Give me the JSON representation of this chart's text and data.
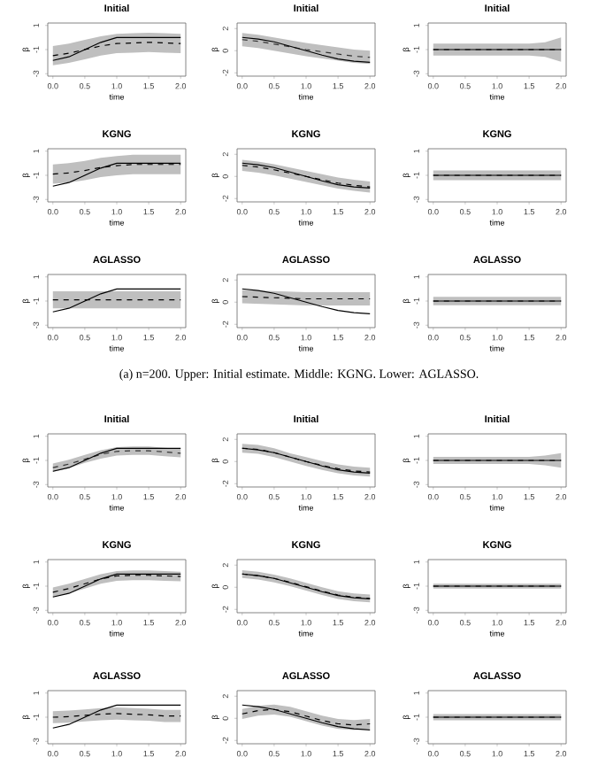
{
  "chart_data": [
    {
      "type": "line",
      "title": "Initial",
      "xlabel": "time",
      "ylabel": "β",
      "x": [
        0,
        0.25,
        0.5,
        0.75,
        1,
        1.25,
        1.5,
        1.75,
        2
      ],
      "xlim": [
        -0.08,
        2.08
      ],
      "ylim": [
        -3.2,
        1.2
      ],
      "xticks": [
        {
          "value": 0,
          "label": "0.0"
        },
        {
          "value": 0.5,
          "label": "0.5"
        },
        {
          "value": 1,
          "label": "1.0"
        },
        {
          "value": 1.5,
          "label": "1.5"
        },
        {
          "value": 2,
          "label": "2.0"
        }
      ],
      "yticks": [
        -3,
        -1,
        1
      ],
      "series": [
        {
          "color": "#000000",
          "line_style": "dashed",
          "values": [
            -1.5,
            -1.3,
            -1.0,
            -0.7,
            -0.5,
            -0.45,
            -0.4,
            -0.45,
            -0.5
          ],
          "lower": [
            -2.3,
            -2.1,
            -1.8,
            -1.5,
            -1.3,
            -1.25,
            -1.2,
            -1.25,
            -1.3
          ],
          "upper": [
            -0.7,
            -0.5,
            -0.2,
            0.1,
            0.3,
            0.35,
            0.4,
            0.35,
            0.3
          ]
        },
        {
          "color": "#000000",
          "line_style": "solid",
          "values": [
            -1.9,
            -1.6,
            -1.0,
            -0.4,
            0,
            0,
            0,
            0,
            0
          ]
        }
      ]
    },
    {
      "type": "line",
      "title": "Initial",
      "xlabel": "time",
      "ylabel": "β",
      "x": [
        0,
        0.25,
        0.5,
        0.75,
        1,
        1.25,
        1.5,
        1.75,
        2
      ],
      "xlim": [
        -0.08,
        2.08
      ],
      "ylim": [
        -2.3,
        2.5
      ],
      "xticks": [
        {
          "value": 0,
          "label": "0.0"
        },
        {
          "value": 0.5,
          "label": "0.5"
        },
        {
          "value": 1,
          "label": "1.0"
        },
        {
          "value": 1.5,
          "label": "1.5"
        },
        {
          "value": 2,
          "label": "2.0"
        }
      ],
      "yticks": [
        -2,
        0,
        2
      ],
      "series": [
        {
          "color": "#333333",
          "line_style": "dashed",
          "values": [
            1.0,
            0.85,
            0.6,
            0.35,
            0.1,
            -0.1,
            -0.3,
            -0.5,
            -0.6
          ],
          "lower": [
            0.4,
            0.25,
            0,
            -0.25,
            -0.5,
            -0.7,
            -0.9,
            -1.1,
            -1.2
          ],
          "upper": [
            1.6,
            1.45,
            1.2,
            0.95,
            0.7,
            0.5,
            0.3,
            0.1,
            0
          ]
        },
        {
          "color": "#000000",
          "line_style": "solid",
          "values": [
            1.2,
            1.05,
            0.8,
            0.4,
            0,
            -0.4,
            -0.75,
            -0.95,
            -1.05
          ]
        }
      ]
    },
    {
      "type": "line",
      "title": "Initial",
      "xlabel": "time",
      "ylabel": "β",
      "x": [
        0,
        0.25,
        0.5,
        0.75,
        1,
        1.25,
        1.5,
        1.75,
        2
      ],
      "xlim": [
        -0.08,
        2.08
      ],
      "ylim": [
        -3.2,
        1.2
      ],
      "xticks": [
        {
          "value": 0,
          "label": "0.0"
        },
        {
          "value": 0.5,
          "label": "0.5"
        },
        {
          "value": 1,
          "label": "1.0"
        },
        {
          "value": 1.5,
          "label": "1.5"
        },
        {
          "value": 2,
          "label": "2.0"
        }
      ],
      "yticks": [
        -3,
        -1,
        1
      ],
      "series": [
        {
          "color": "#000000",
          "line_style": "dashed",
          "values": [
            -1,
            -1,
            -1,
            -1,
            -1,
            -1,
            -1,
            -1,
            -1
          ],
          "lower": [
            -1.5,
            -1.5,
            -1.5,
            -1.5,
            -1.5,
            -1.5,
            -1.5,
            -1.6,
            -2
          ],
          "upper": [
            -0.5,
            -0.5,
            -0.5,
            -0.5,
            -0.5,
            -0.5,
            -0.5,
            -0.4,
            0
          ]
        },
        {
          "color": "#000000",
          "line_style": "solid",
          "values": [
            -1,
            -1,
            -1,
            -1,
            -1,
            -1,
            -1,
            -1,
            -1
          ]
        }
      ]
    },
    {
      "type": "line",
      "title": "KGNG",
      "xlabel": "time",
      "ylabel": "β",
      "x": [
        0,
        0.25,
        0.5,
        0.75,
        1,
        1.25,
        1.5,
        1.75,
        2
      ],
      "xlim": [
        -0.08,
        2.08
      ],
      "ylim": [
        -3.2,
        1.2
      ],
      "xticks": [
        {
          "value": 0,
          "label": "0.0"
        },
        {
          "value": 0.5,
          "label": "0.5"
        },
        {
          "value": 1,
          "label": "1.0"
        },
        {
          "value": 1.5,
          "label": "1.5"
        },
        {
          "value": 2,
          "label": "2.0"
        }
      ],
      "yticks": [
        -3,
        -1,
        1
      ],
      "series": [
        {
          "color": "#000000",
          "line_style": "dashed",
          "values": [
            -0.9,
            -0.8,
            -0.6,
            -0.35,
            -0.2,
            -0.1,
            -0.1,
            -0.1,
            -0.1
          ],
          "lower": [
            -1.7,
            -1.6,
            -1.4,
            -1.15,
            -1.0,
            -0.9,
            -0.9,
            -0.9,
            -0.9
          ],
          "upper": [
            -0.1,
            0,
            0.2,
            0.45,
            0.6,
            0.7,
            0.7,
            0.7,
            0.7
          ]
        },
        {
          "color": "#000000",
          "line_style": "solid",
          "values": [
            -1.9,
            -1.6,
            -1.0,
            -0.4,
            0,
            0,
            0,
            0,
            0
          ]
        }
      ]
    },
    {
      "type": "line",
      "title": "KGNG",
      "xlabel": "time",
      "ylabel": "β",
      "x": [
        0,
        0.25,
        0.5,
        0.75,
        1,
        1.25,
        1.5,
        1.75,
        2
      ],
      "xlim": [
        -0.08,
        2.08
      ],
      "ylim": [
        -2.3,
        2.5
      ],
      "xticks": [
        {
          "value": 0,
          "label": "0.0"
        },
        {
          "value": 0.5,
          "label": "0.5"
        },
        {
          "value": 1,
          "label": "1.0"
        },
        {
          "value": 1.5,
          "label": "1.5"
        },
        {
          "value": 2,
          "label": "2.0"
        }
      ],
      "yticks": [
        -2,
        0,
        2
      ],
      "series": [
        {
          "color": "#000000",
          "line_style": "dashed",
          "values": [
            1.0,
            0.85,
            0.6,
            0.3,
            0.0,
            -0.3,
            -0.6,
            -0.8,
            -0.95
          ],
          "lower": [
            0.5,
            0.35,
            0.1,
            -0.2,
            -0.5,
            -0.8,
            -1.1,
            -1.3,
            -1.45
          ],
          "upper": [
            1.5,
            1.35,
            1.1,
            0.8,
            0.5,
            0.2,
            -0.1,
            -0.3,
            -0.45
          ]
        },
        {
          "color": "#000000",
          "line_style": "solid",
          "values": [
            1.2,
            1.05,
            0.8,
            0.4,
            0,
            -0.4,
            -0.75,
            -0.95,
            -1.05
          ]
        }
      ]
    },
    {
      "type": "line",
      "title": "KGNG",
      "xlabel": "time",
      "ylabel": "β",
      "x": [
        0,
        0.25,
        0.5,
        0.75,
        1,
        1.25,
        1.5,
        1.75,
        2
      ],
      "xlim": [
        -0.08,
        2.08
      ],
      "ylim": [
        -3.2,
        1.2
      ],
      "xticks": [
        {
          "value": 0,
          "label": "0.0"
        },
        {
          "value": 0.5,
          "label": "0.5"
        },
        {
          "value": 1,
          "label": "1.0"
        },
        {
          "value": 1.5,
          "label": "1.5"
        },
        {
          "value": 2,
          "label": "2.0"
        }
      ],
      "yticks": [
        -3,
        -1,
        1
      ],
      "series": [
        {
          "color": "#000000",
          "line_style": "dashed",
          "values": [
            -1,
            -1,
            -1,
            -1,
            -1,
            -1,
            -1,
            -1,
            -1
          ],
          "lower": [
            -1.4,
            -1.4,
            -1.4,
            -1.4,
            -1.4,
            -1.4,
            -1.4,
            -1.4,
            -1.4
          ],
          "upper": [
            -0.6,
            -0.6,
            -0.6,
            -0.6,
            -0.6,
            -0.6,
            -0.6,
            -0.6,
            -0.6
          ]
        },
        {
          "color": "#000000",
          "line_style": "solid",
          "values": [
            -1,
            -1,
            -1,
            -1,
            -1,
            -1,
            -1,
            -1,
            -1
          ]
        }
      ]
    },
    {
      "type": "line",
      "title": "AGLASSO",
      "xlabel": "time",
      "ylabel": "β",
      "annotations": [
        "(a) n=200. Upper: Initial estimate. Middle: KGNG. Lower: AGLASSO."
      ],
      "x": [
        0,
        0.25,
        0.5,
        0.75,
        1,
        1.25,
        1.5,
        1.75,
        2
      ],
      "xlim": [
        -0.08,
        2.08
      ],
      "ylim": [
        -3.2,
        1.2
      ],
      "xticks": [
        {
          "value": 0,
          "label": "0.0"
        },
        {
          "value": 0.5,
          "label": "0.5"
        },
        {
          "value": 1,
          "label": "1.0"
        },
        {
          "value": 1.5,
          "label": "1.5"
        },
        {
          "value": 2,
          "label": "2.0"
        }
      ],
      "yticks": [
        -3,
        -1,
        1
      ],
      "series": [
        {
          "color": "#000000",
          "line_style": "dashed",
          "values": [
            -0.9,
            -0.9,
            -0.9,
            -0.9,
            -0.9,
            -0.9,
            -0.9,
            -0.9,
            -0.9
          ],
          "lower": [
            -1.6,
            -1.6,
            -1.6,
            -1.6,
            -1.6,
            -1.6,
            -1.6,
            -1.6,
            -1.6
          ],
          "upper": [
            -0.2,
            -0.2,
            -0.2,
            -0.2,
            -0.2,
            -0.2,
            -0.2,
            -0.2,
            -0.2
          ]
        },
        {
          "color": "#000000",
          "line_style": "solid",
          "values": [
            -1.9,
            -1.6,
            -1.0,
            -0.4,
            0,
            0,
            0,
            0,
            0
          ]
        }
      ]
    },
    {
      "type": "line",
      "title": "AGLASSO",
      "xlabel": "time",
      "ylabel": "β",
      "x": [
        0,
        0.25,
        0.5,
        0.75,
        1,
        1.25,
        1.5,
        1.75,
        2
      ],
      "xlim": [
        -0.08,
        2.08
      ],
      "ylim": [
        -2.3,
        2.5
      ],
      "xticks": [
        {
          "value": 0,
          "label": "0.0"
        },
        {
          "value": 0.5,
          "label": "0.5"
        },
        {
          "value": 1,
          "label": "1.0"
        },
        {
          "value": 1.5,
          "label": "1.5"
        },
        {
          "value": 2,
          "label": "2.0"
        }
      ],
      "yticks": [
        -2,
        0,
        2
      ],
      "series": [
        {
          "color": "#000000",
          "line_style": "dashed",
          "values": [
            0.5,
            0.45,
            0.4,
            0.35,
            0.3,
            0.3,
            0.3,
            0.3,
            0.3
          ],
          "lower": [
            -0.1,
            -0.15,
            -0.2,
            -0.25,
            -0.3,
            -0.3,
            -0.3,
            -0.3,
            -0.3
          ],
          "upper": [
            1.1,
            1.05,
            1.0,
            0.95,
            0.9,
            0.9,
            0.9,
            0.9,
            0.9
          ]
        },
        {
          "color": "#000000",
          "line_style": "solid",
          "values": [
            1.2,
            1.05,
            0.8,
            0.4,
            0,
            -0.4,
            -0.75,
            -0.95,
            -1.05
          ]
        }
      ]
    },
    {
      "type": "line",
      "title": "AGLASSO",
      "xlabel": "time",
      "ylabel": "β",
      "x": [
        0,
        0.25,
        0.5,
        0.75,
        1,
        1.25,
        1.5,
        1.75,
        2
      ],
      "xlim": [
        -0.08,
        2.08
      ],
      "ylim": [
        -3.2,
        1.2
      ],
      "xticks": [
        {
          "value": 0,
          "label": "0.0"
        },
        {
          "value": 0.5,
          "label": "0.5"
        },
        {
          "value": 1,
          "label": "1.0"
        },
        {
          "value": 1.5,
          "label": "1.5"
        },
        {
          "value": 2,
          "label": "2.0"
        }
      ],
      "yticks": [
        -3,
        -1,
        1
      ],
      "series": [
        {
          "color": "#000000",
          "line_style": "dashed",
          "values": [
            -1,
            -1,
            -1,
            -1,
            -1,
            -1,
            -1,
            -1,
            -1
          ],
          "lower": [
            -1.35,
            -1.35,
            -1.35,
            -1.35,
            -1.35,
            -1.35,
            -1.35,
            -1.35,
            -1.35
          ],
          "upper": [
            -0.65,
            -0.65,
            -0.65,
            -0.65,
            -0.65,
            -0.65,
            -0.65,
            -0.65,
            -0.65
          ]
        },
        {
          "color": "#000000",
          "line_style": "solid",
          "values": [
            -1,
            -1,
            -1,
            -1,
            -1,
            -1,
            -1,
            -1,
            -1
          ]
        }
      ]
    },
    {
      "type": "line",
      "title": "Initial",
      "xlabel": "time",
      "ylabel": "β",
      "x": [
        0,
        0.25,
        0.5,
        0.75,
        1,
        1.25,
        1.5,
        1.75,
        2
      ],
      "xlim": [
        -0.08,
        2.08
      ],
      "ylim": [
        -3.2,
        1.2
      ],
      "xticks": [
        {
          "value": 0,
          "label": "0.0"
        },
        {
          "value": 0.5,
          "label": "0.5"
        },
        {
          "value": 1,
          "label": "1.0"
        },
        {
          "value": 1.5,
          "label": "1.5"
        },
        {
          "value": 2,
          "label": "2.0"
        }
      ],
      "yticks": [
        -3,
        -1,
        1
      ],
      "series": [
        {
          "color": "#333333",
          "line_style": "dashed",
          "values": [
            -1.6,
            -1.3,
            -0.9,
            -0.5,
            -0.25,
            -0.2,
            -0.2,
            -0.3,
            -0.4
          ],
          "lower": [
            -1.95,
            -1.65,
            -1.2,
            -0.85,
            -0.6,
            -0.55,
            -0.55,
            -0.65,
            -0.75
          ],
          "upper": [
            -1.25,
            -0.95,
            -0.55,
            -0.15,
            0.1,
            0.15,
            0.15,
            0.05,
            -0.05
          ]
        },
        {
          "color": "#000000",
          "line_style": "solid",
          "values": [
            -1.9,
            -1.6,
            -1.0,
            -0.4,
            0,
            0,
            0,
            0,
            0
          ]
        }
      ]
    },
    {
      "type": "line",
      "title": "Initial",
      "xlabel": "time",
      "ylabel": "β",
      "x": [
        0,
        0.25,
        0.5,
        0.75,
        1,
        1.25,
        1.5,
        1.75,
        2
      ],
      "xlim": [
        -0.08,
        2.08
      ],
      "ylim": [
        -2.3,
        2.5
      ],
      "xticks": [
        {
          "value": 0,
          "label": "0.0"
        },
        {
          "value": 0.5,
          "label": "0.5"
        },
        {
          "value": 1,
          "label": "1.0"
        },
        {
          "value": 1.5,
          "label": "1.5"
        },
        {
          "value": 2,
          "label": "2.0"
        }
      ],
      "yticks": [
        -2,
        0,
        2
      ],
      "series": [
        {
          "color": "#000000",
          "line_style": "dashed",
          "values": [
            1.2,
            1.1,
            0.8,
            0.4,
            0,
            -0.35,
            -0.65,
            -0.85,
            -0.95
          ],
          "lower": [
            0.8,
            0.7,
            0.4,
            0,
            -0.4,
            -0.75,
            -1.05,
            -1.25,
            -1.35
          ],
          "upper": [
            1.6,
            1.5,
            1.2,
            0.75,
            0.4,
            0.05,
            -0.25,
            -0.45,
            -0.55
          ]
        },
        {
          "color": "#000000",
          "line_style": "solid",
          "values": [
            1.2,
            1.05,
            0.8,
            0.4,
            0,
            -0.4,
            -0.75,
            -0.95,
            -1.05
          ]
        }
      ]
    },
    {
      "type": "line",
      "title": "Initial",
      "xlabel": "time",
      "ylabel": "β",
      "x": [
        0,
        0.25,
        0.5,
        0.75,
        1,
        1.25,
        1.5,
        1.75,
        2
      ],
      "xlim": [
        -0.08,
        2.08
      ],
      "ylim": [
        -3.2,
        1.2
      ],
      "xticks": [
        {
          "value": 0,
          "label": "0.0"
        },
        {
          "value": 0.5,
          "label": "0.5"
        },
        {
          "value": 1,
          "label": "1.0"
        },
        {
          "value": 1.5,
          "label": "1.5"
        },
        {
          "value": 2,
          "label": "2.0"
        }
      ],
      "yticks": [
        -3,
        -1,
        1
      ],
      "series": [
        {
          "color": "#000000",
          "line_style": "dashed",
          "values": [
            -1,
            -1,
            -1,
            -1,
            -1,
            -1,
            -1,
            -1,
            -1
          ],
          "lower": [
            -1.3,
            -1.3,
            -1.3,
            -1.3,
            -1.3,
            -1.3,
            -1.3,
            -1.4,
            -1.6
          ],
          "upper": [
            -0.7,
            -0.7,
            -0.7,
            -0.7,
            -0.7,
            -0.7,
            -0.7,
            -0.6,
            -0.4
          ]
        },
        {
          "color": "#000000",
          "line_style": "solid",
          "values": [
            -1,
            -1,
            -1,
            -1,
            -1,
            -1,
            -1,
            -1,
            -1
          ]
        }
      ]
    },
    {
      "type": "line",
      "title": "KGNG",
      "xlabel": "time",
      "ylabel": "β",
      "x": [
        0,
        0.25,
        0.5,
        0.75,
        1,
        1.25,
        1.5,
        1.75,
        2
      ],
      "xlim": [
        -0.08,
        2.08
      ],
      "ylim": [
        -3.2,
        1.2
      ],
      "xticks": [
        {
          "value": 0,
          "label": "0.0"
        },
        {
          "value": 0.5,
          "label": "0.5"
        },
        {
          "value": 1,
          "label": "1.0"
        },
        {
          "value": 1.5,
          "label": "1.5"
        },
        {
          "value": 2,
          "label": "2.0"
        }
      ],
      "yticks": [
        -3,
        -1,
        1
      ],
      "series": [
        {
          "color": "#000000",
          "line_style": "dashed",
          "values": [
            -1.5,
            -1.2,
            -0.8,
            -0.4,
            -0.15,
            -0.1,
            -0.1,
            -0.15,
            -0.2
          ],
          "lower": [
            -1.9,
            -1.6,
            -1.2,
            -0.8,
            -0.55,
            -0.5,
            -0.5,
            -0.55,
            -0.6
          ],
          "upper": [
            -1.1,
            -0.8,
            -0.4,
            0,
            0.25,
            0.3,
            0.3,
            0.25,
            0.2
          ]
        },
        {
          "color": "#000000",
          "line_style": "solid",
          "values": [
            -1.9,
            -1.6,
            -1.0,
            -0.4,
            0,
            0,
            0,
            0,
            0
          ]
        }
      ]
    },
    {
      "type": "line",
      "title": "KGNG",
      "xlabel": "time",
      "ylabel": "β",
      "x": [
        0,
        0.25,
        0.5,
        0.75,
        1,
        1.25,
        1.5,
        1.75,
        2
      ],
      "xlim": [
        -0.08,
        2.08
      ],
      "ylim": [
        -2.3,
        2.5
      ],
      "xticks": [
        {
          "value": 0,
          "label": "0.0"
        },
        {
          "value": 0.5,
          "label": "0.5"
        },
        {
          "value": 1,
          "label": "1.0"
        },
        {
          "value": 1.5,
          "label": "1.5"
        },
        {
          "value": 2,
          "label": "2.0"
        }
      ],
      "yticks": [
        -2,
        0,
        2
      ],
      "series": [
        {
          "color": "#000000",
          "line_style": "dashed",
          "values": [
            1.2,
            1.05,
            0.8,
            0.45,
            0.05,
            -0.35,
            -0.7,
            -0.9,
            -1.0
          ],
          "lower": [
            0.85,
            0.7,
            0.45,
            0.1,
            -0.3,
            -0.7,
            -1.05,
            -1.25,
            -1.35
          ],
          "upper": [
            1.55,
            1.4,
            1.15,
            0.8,
            0.4,
            0,
            -0.35,
            -0.55,
            -0.65
          ]
        },
        {
          "color": "#000000",
          "line_style": "solid",
          "values": [
            1.2,
            1.05,
            0.8,
            0.4,
            0,
            -0.4,
            -0.75,
            -0.95,
            -1.05
          ]
        }
      ]
    },
    {
      "type": "line",
      "title": "KGNG",
      "xlabel": "time",
      "ylabel": "β",
      "x": [
        0,
        0.25,
        0.5,
        0.75,
        1,
        1.25,
        1.5,
        1.75,
        2
      ],
      "xlim": [
        -0.08,
        2.08
      ],
      "ylim": [
        -3.2,
        1.2
      ],
      "xticks": [
        {
          "value": 0,
          "label": "0.0"
        },
        {
          "value": 0.5,
          "label": "0.5"
        },
        {
          "value": 1,
          "label": "1.0"
        },
        {
          "value": 1.5,
          "label": "1.5"
        },
        {
          "value": 2,
          "label": "2.0"
        }
      ],
      "yticks": [
        -3,
        -1,
        1
      ],
      "series": [
        {
          "color": "#000000",
          "line_style": "dashed",
          "values": [
            -1,
            -1,
            -1,
            -1,
            -1,
            -1,
            -1,
            -1,
            -1
          ],
          "lower": [
            -1.2,
            -1.2,
            -1.2,
            -1.2,
            -1.2,
            -1.2,
            -1.2,
            -1.2,
            -1.2
          ],
          "upper": [
            -0.8,
            -0.8,
            -0.8,
            -0.8,
            -0.8,
            -0.8,
            -0.8,
            -0.8,
            -0.8
          ]
        },
        {
          "color": "#000000",
          "line_style": "solid",
          "values": [
            -1,
            -1,
            -1,
            -1,
            -1,
            -1,
            -1,
            -1,
            -1
          ]
        }
      ]
    },
    {
      "type": "line",
      "title": "AGLASSO",
      "ylabel": "β",
      "x": [
        0,
        0.25,
        0.5,
        0.75,
        1,
        1.25,
        1.5,
        1.75,
        2
      ],
      "xlim": [
        -0.08,
        2.08
      ],
      "ylim": [
        -3.2,
        1.2
      ],
      "xticks": [
        {
          "value": 0,
          "label": "0.0"
        },
        {
          "value": 0.5,
          "label": "0.5"
        },
        {
          "value": 1,
          "label": "1.0"
        },
        {
          "value": 1.5,
          "label": "1.5"
        },
        {
          "value": 2,
          "label": "2.0"
        }
      ],
      "yticks": [
        -3,
        -1,
        1
      ],
      "series": [
        {
          "color": "#000000",
          "line_style": "dashed",
          "values": [
            -1.0,
            -0.95,
            -0.85,
            -0.75,
            -0.7,
            -0.75,
            -0.8,
            -0.9,
            -0.9
          ],
          "lower": [
            -1.5,
            -1.45,
            -1.35,
            -1.25,
            -1.2,
            -1.25,
            -1.3,
            -1.4,
            -1.4
          ],
          "upper": [
            -0.5,
            -0.45,
            -0.35,
            -0.25,
            -0.2,
            -0.25,
            -0.3,
            -0.4,
            -0.4
          ]
        },
        {
          "color": "#000000",
          "line_style": "solid",
          "values": [
            -1.9,
            -1.6,
            -1.0,
            -0.4,
            0,
            0,
            0,
            0,
            0
          ]
        }
      ]
    },
    {
      "type": "line",
      "title": "AGLASSO",
      "ylabel": "β",
      "x": [
        0,
        0.25,
        0.5,
        0.75,
        1,
        1.25,
        1.5,
        1.75,
        2
      ],
      "xlim": [
        -0.08,
        2.08
      ],
      "ylim": [
        -2.3,
        2.5
      ],
      "xticks": [
        {
          "value": 0,
          "label": "0.0"
        },
        {
          "value": 0.5,
          "label": "0.5"
        },
        {
          "value": 1,
          "label": "1.0"
        },
        {
          "value": 1.5,
          "label": "1.5"
        },
        {
          "value": 2,
          "label": "2.0"
        }
      ],
      "yticks": [
        -2,
        0,
        2
      ],
      "series": [
        {
          "color": "#000000",
          "line_style": "dashed",
          "values": [
            0.4,
            0.7,
            0.8,
            0.6,
            0.2,
            -0.2,
            -0.5,
            -0.6,
            -0.5
          ],
          "lower": [
            -0.05,
            0.25,
            0.35,
            0.15,
            -0.25,
            -0.65,
            -0.95,
            -1.05,
            -0.95
          ],
          "upper": [
            0.85,
            1.15,
            1.25,
            1.05,
            0.65,
            0.25,
            -0.05,
            -0.15,
            -0.05
          ]
        },
        {
          "color": "#000000",
          "line_style": "solid",
          "values": [
            1.2,
            1.05,
            0.8,
            0.4,
            0,
            -0.4,
            -0.75,
            -0.95,
            -1.05
          ]
        }
      ]
    },
    {
      "type": "line",
      "title": "AGLASSO",
      "ylabel": "β",
      "x": [
        0,
        0.25,
        0.5,
        0.75,
        1,
        1.25,
        1.5,
        1.75,
        2
      ],
      "xlim": [
        -0.08,
        2.08
      ],
      "ylim": [
        -3.2,
        1.2
      ],
      "xticks": [
        {
          "value": 0,
          "label": "0.0"
        },
        {
          "value": 0.5,
          "label": "0.5"
        },
        {
          "value": 1,
          "label": "1.0"
        },
        {
          "value": 1.5,
          "label": "1.5"
        },
        {
          "value": 2,
          "label": "2.0"
        }
      ],
      "yticks": [
        -3,
        -1,
        1
      ],
      "series": [
        {
          "color": "#000000",
          "line_style": "dashed",
          "values": [
            -1,
            -1,
            -1,
            -1,
            -1,
            -1,
            -1,
            -1,
            -1
          ],
          "lower": [
            -1.25,
            -1.25,
            -1.25,
            -1.25,
            -1.25,
            -1.25,
            -1.25,
            -1.25,
            -1.25
          ],
          "upper": [
            -0.75,
            -0.75,
            -0.75,
            -0.75,
            -0.75,
            -0.75,
            -0.75,
            -0.75,
            -0.75
          ]
        },
        {
          "color": "#000000",
          "line_style": "solid",
          "values": [
            -1,
            -1,
            -1,
            -1,
            -1,
            -1,
            -1,
            -1,
            -1
          ]
        }
      ]
    }
  ]
}
